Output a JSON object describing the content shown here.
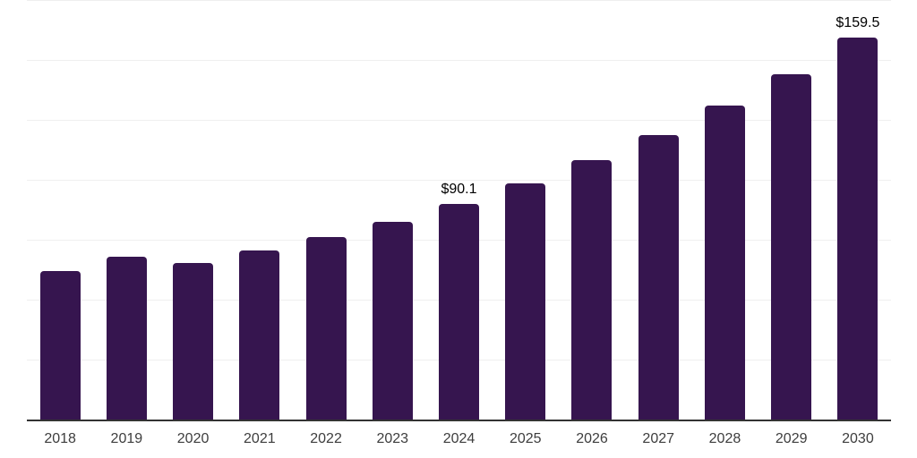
{
  "page": {
    "background_color": "#ffffff"
  },
  "chart_data": {
    "type": "bar",
    "title": "",
    "xlabel": "",
    "ylabel": "",
    "legend": "none",
    "categories": [
      "2018",
      "2019",
      "2020",
      "2021",
      "2022",
      "2023",
      "2024",
      "2025",
      "2026",
      "2027",
      "2028",
      "2029",
      "2030"
    ],
    "values": [
      62.1,
      67.9,
      65.4,
      70.6,
      76.3,
      82.6,
      90.1,
      98.6,
      108.1,
      118.6,
      130.8,
      144.2,
      159.5
    ],
    "data_labels": [
      null,
      null,
      null,
      null,
      null,
      null,
      "$90.1",
      null,
      null,
      null,
      null,
      null,
      "$159.5"
    ],
    "ylim": [
      0,
      175
    ],
    "grid": true,
    "grid_interval": 25,
    "y_tick_labels_shown": false,
    "bar_color": "#36154f",
    "grid_color": "#efefef",
    "axis_color": "#333333",
    "tick_label_color": "#3d3d3d",
    "data_label_color": "#000000"
  }
}
